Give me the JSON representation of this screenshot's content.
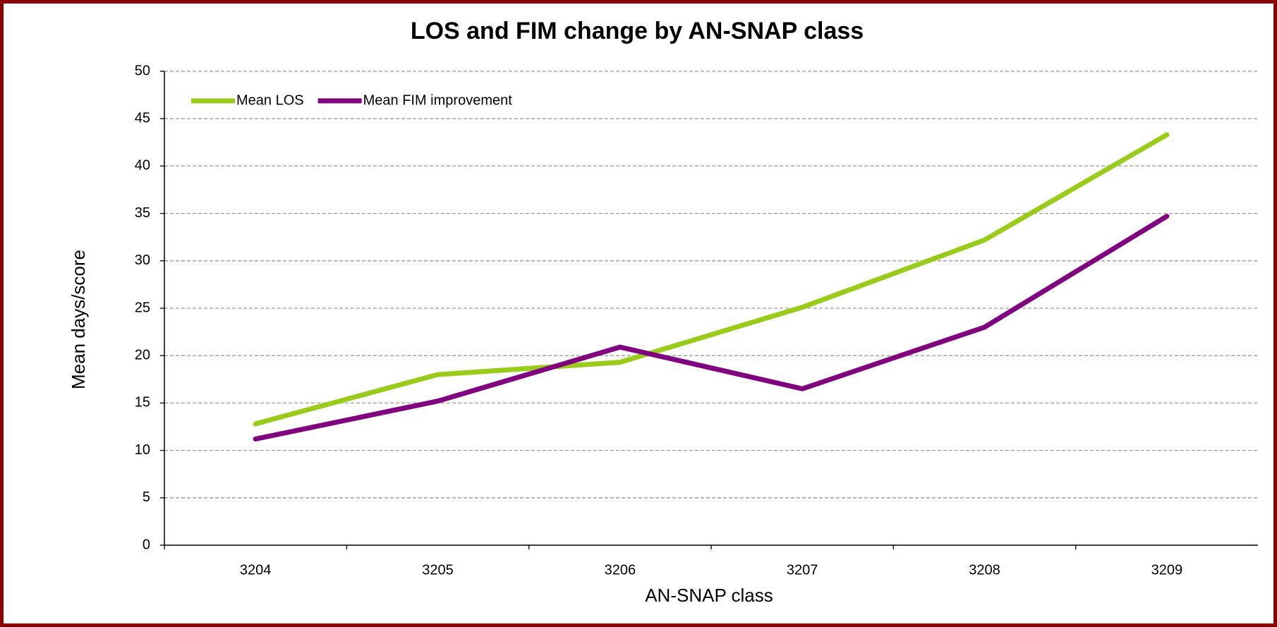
{
  "chart_data": {
    "type": "line",
    "title": "LOS and FIM change by AN-SNAP class",
    "x_label": "AN-SNAP class",
    "y_label": "Mean days/score",
    "categories": [
      "3204",
      "3205",
      "3206",
      "3207",
      "3208",
      "3209"
    ],
    "series": [
      {
        "name": "Mean LOS",
        "color": "#99cc1a",
        "values": [
          12.8,
          18.0,
          19.3,
          25.1,
          32.2,
          43.3
        ]
      },
      {
        "name": "Mean FIM improvement",
        "color": "#800080",
        "values": [
          11.2,
          15.2,
          20.9,
          16.5,
          23.0,
          34.7
        ]
      }
    ],
    "ylim": [
      0,
      50
    ],
    "yticks": [
      0,
      5,
      10,
      15,
      20,
      25,
      30,
      35,
      40,
      45,
      50
    ],
    "grid": true,
    "legend": "top-left"
  }
}
